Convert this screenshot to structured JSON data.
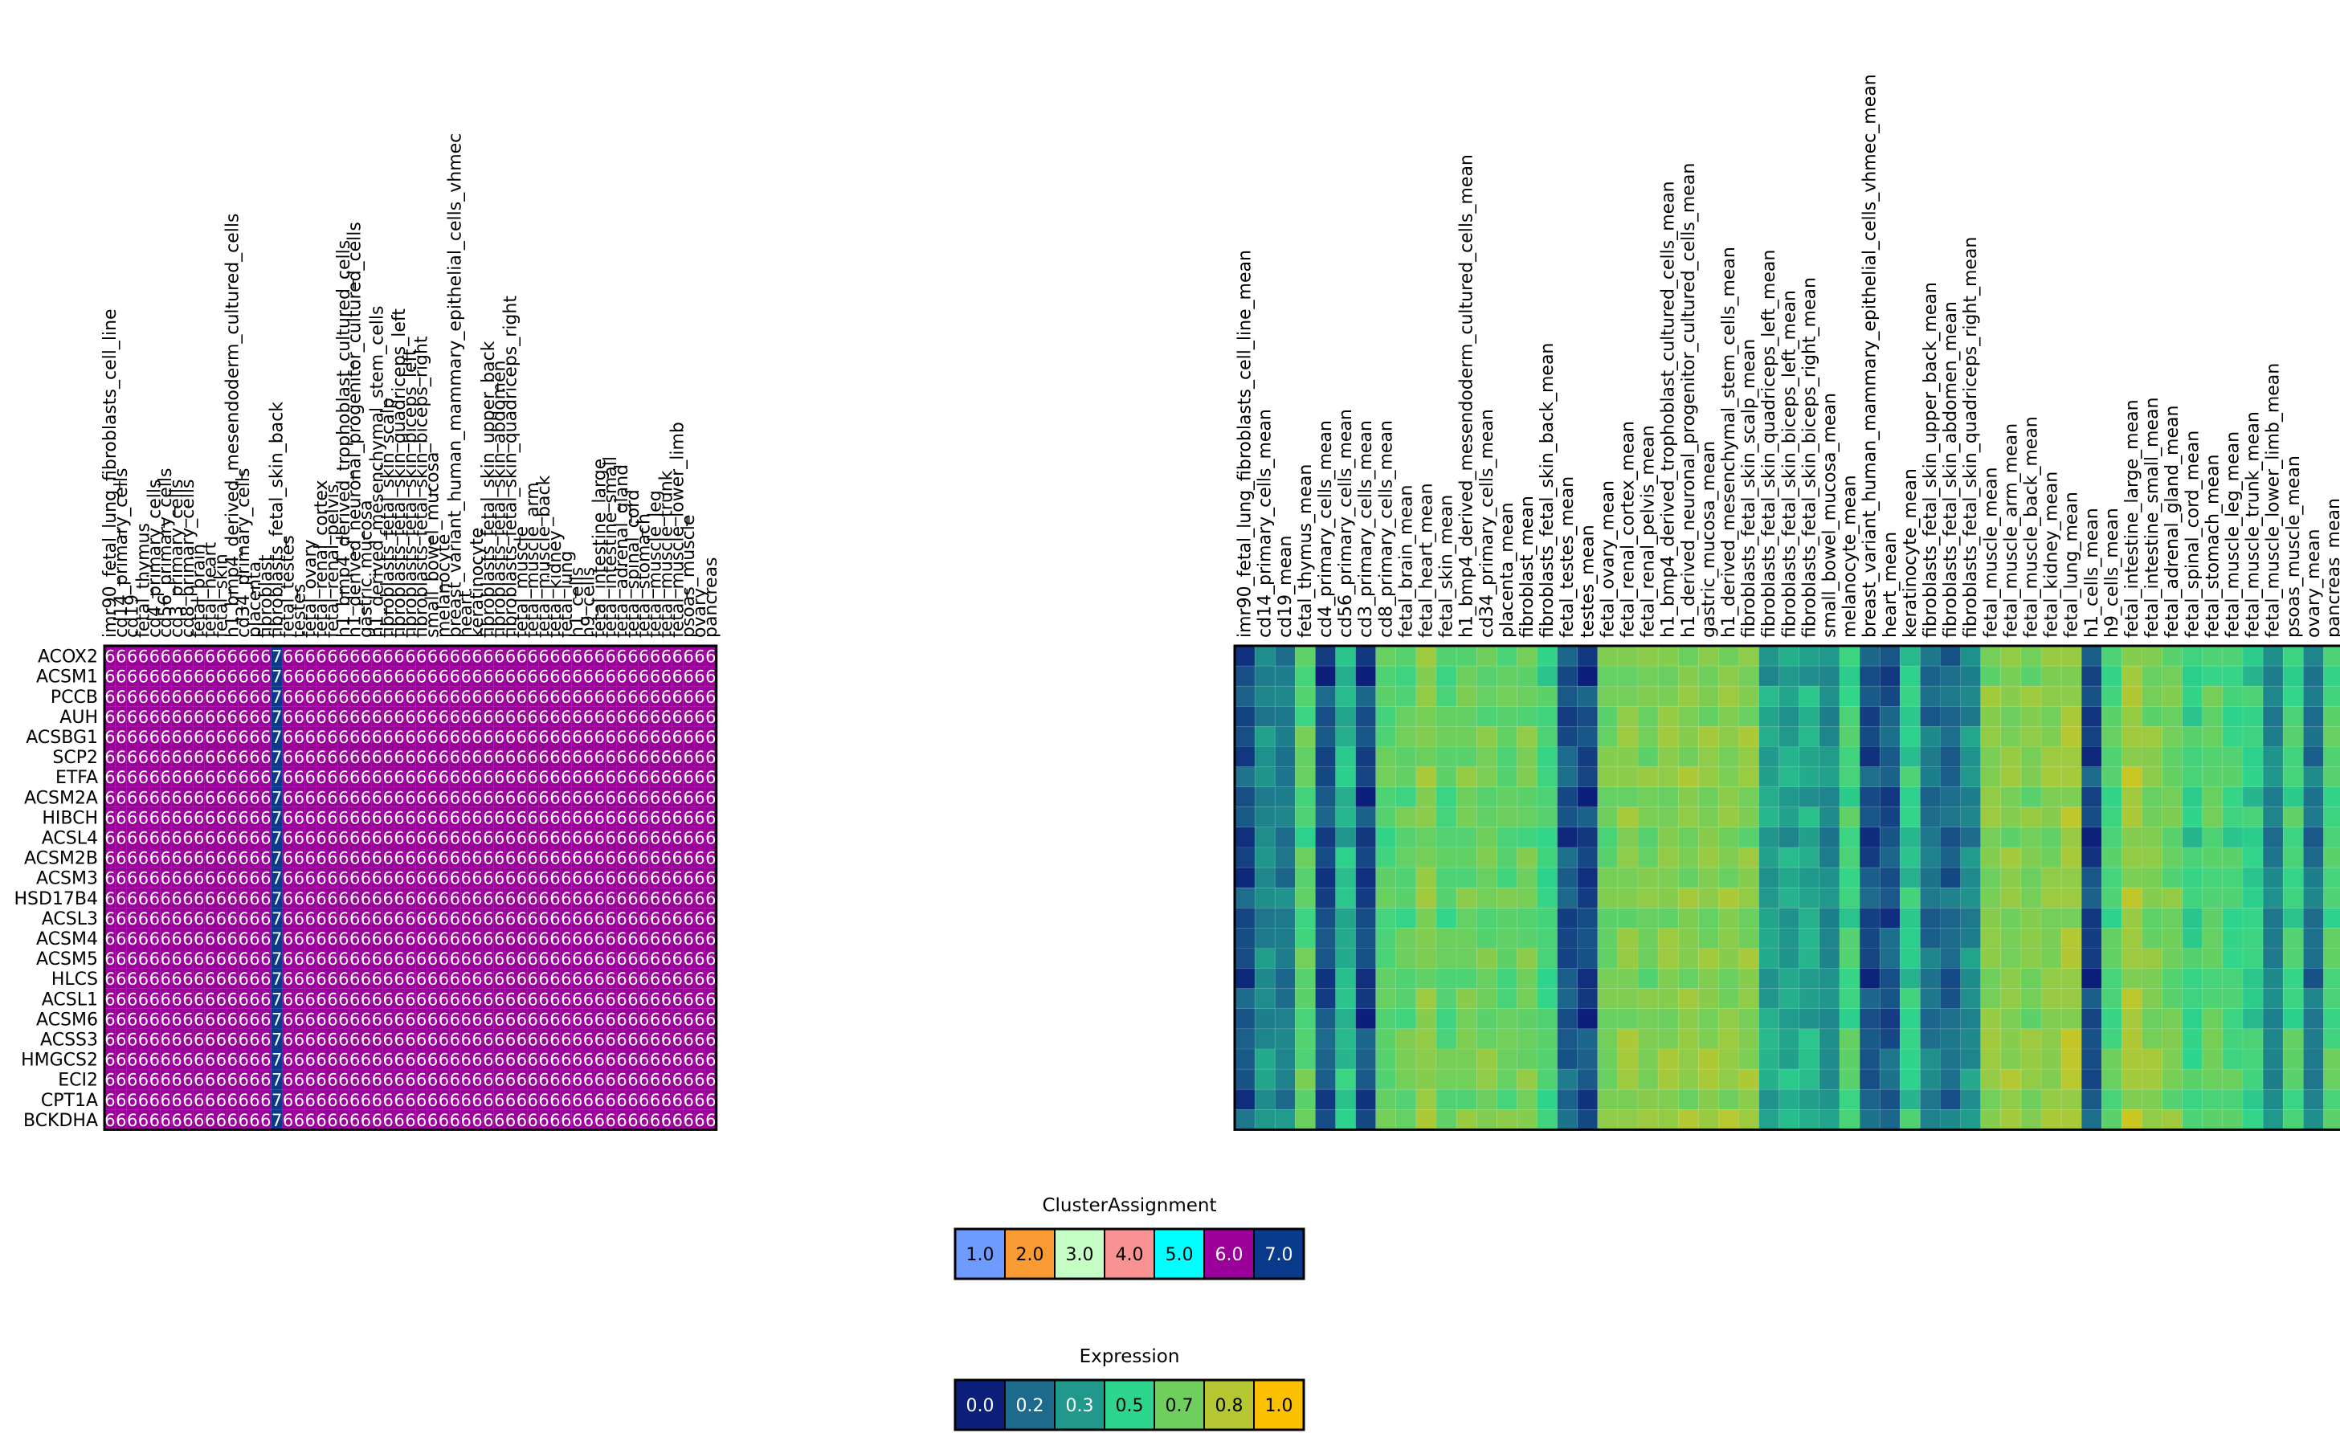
{
  "chart_data": [
    {
      "type": "heatmap",
      "title": "",
      "rows": [
        "ACOX2",
        "ACSM1",
        "PCCB",
        "AUH",
        "ACSBG1",
        "SCP2",
        "ETFA",
        "ACSM2A",
        "HIBCH",
        "ACSL4",
        "ACSM2B",
        "ACSM3",
        "HSD17B4",
        "ACSL3",
        "ACSM4",
        "ACSM5",
        "HLCS",
        "ACSL1",
        "ACSM6",
        "ACSS3",
        "HMGCS2",
        "ECI2",
        "CPT1A",
        "BCKDHA"
      ],
      "columns": [
        "imr90_fetal_lung_fibroblasts_cell_line",
        "cd14_primary_cells",
        "cd19",
        "fetal_thymus",
        "cd4_primary_cells",
        "cd56_primary_cells",
        "cd3_primary_cells",
        "cd8_primary_cells",
        "fetal_brain",
        "fetal_heart",
        "fetal_skin",
        "h1_bmp4_derived_mesendoderm_cultured_cells",
        "cd34_primary_cells",
        "placenta",
        "fibroblast",
        "fibroblasts_fetal_skin_back",
        "fetal_testes",
        "testes",
        "fetal_ovary",
        "fetal_renal_cortex",
        "fetal_renal_pelvis",
        "h1_bmp4_derived_trophoblast_cultured_cells",
        "h1_derived_neuronal_progenitor_cultured_cells",
        "gastric_mucosa",
        "h1_derived_mesenchymal_stem_cells",
        "fibroblasts_fetal_skin_scalp",
        "fibroblasts_fetal_skin_quadriceps_left",
        "fibroblasts_fetal_skin_biceps_left",
        "fibroblasts_fetal_skin_biceps_right",
        "small_bowel_mucosa",
        "melanocyte",
        "breast_variant_human_mammary_epithelial_cells_vhmec",
        "heart",
        "keratinocyte",
        "fibroblasts_fetal_skin_upper_back",
        "fibroblasts_fetal_skin_abdomen",
        "fibroblasts_fetal_skin_quadriceps_right",
        "fetal_muscle",
        "fetal_muscle_arm",
        "fetal_muscle_back",
        "fetal_kidney",
        "fetal_lung",
        "h1_cells",
        "h9_cells",
        "fetal_intestine_large",
        "fetal_intestine_small",
        "fetal_adrenal_gland",
        "fetal_spinal_cord",
        "fetal_stomach",
        "fetal_muscle_leg",
        "fetal_muscle_trunk",
        "fetal_muscle_lower_limb",
        "psoas_muscle",
        "ovary",
        "pancreas"
      ],
      "cell_text": "6",
      "special_column": "fibroblasts_fetal_skin_back",
      "special_text": "7",
      "cell_color": "#9b009b",
      "special_color": "#0a3a8c"
    },
    {
      "type": "heatmap",
      "title": "",
      "columns": [
        "imr90_fetal_lung_fibroblasts_cell_line_mean",
        "cd14_primary_cells_mean",
        "cd19_mean",
        "fetal_thymus_mean",
        "cd4_primary_cells_mean",
        "cd56_primary_cells_mean",
        "cd3_primary_cells_mean",
        "cd8_primary_cells_mean",
        "fetal_brain_mean",
        "fetal_heart_mean",
        "fetal_skin_mean",
        "h1_bmp4_derived_mesendoderm_cultured_cells_mean",
        "cd34_primary_cells_mean",
        "placenta_mean",
        "fibroblast_mean",
        "fibroblasts_fetal_skin_back_mean",
        "fetal_testes_mean",
        "testes_mean",
        "fetal_ovary_mean",
        "fetal_renal_cortex_mean",
        "fetal_renal_pelvis_mean",
        "h1_bmp4_derived_trophoblast_cultured_cells_mean",
        "h1_derived_neuronal_progenitor_cultured_cells_mean",
        "gastric_mucosa_mean",
        "h1_derived_mesenchymal_stem_cells_mean",
        "fibroblasts_fetal_skin_scalp_mean",
        "fibroblasts_fetal_skin_quadriceps_left_mean",
        "fibroblasts_fetal_skin_biceps_left_mean",
        "fibroblasts_fetal_skin_biceps_right_mean",
        "small_bowel_mucosa_mean",
        "melanocyte_mean",
        "breast_variant_human_mammary_epithelial_cells_vhmec_mean",
        "heart_mean",
        "keratinocyte_mean",
        "fibroblasts_fetal_skin_upper_back_mean",
        "fibroblasts_fetal_skin_abdomen_mean",
        "fibroblasts_fetal_skin_quadriceps_right_mean",
        "fetal_muscle_mean",
        "fetal_muscle_arm_mean",
        "fetal_muscle_back_mean",
        "fetal_kidney_mean",
        "fetal_lung_mean",
        "h1_cells_mean",
        "h9_cells_mean",
        "fetal_intestine_large_mean",
        "fetal_intestine_small_mean",
        "fetal_adrenal_gland_mean",
        "fetal_spinal_cord_mean",
        "fetal_stomach_mean",
        "fetal_muscle_leg_mean",
        "fetal_muscle_trunk_mean",
        "fetal_muscle_lower_limb_mean",
        "psoas_muscle_mean",
        "ovary_mean",
        "pancreas_mean"
      ],
      "column_levels": [
        0.1,
        0.28,
        0.22,
        0.6,
        0.1,
        0.42,
        0.08,
        0.6,
        0.62,
        0.72,
        0.6,
        0.66,
        0.66,
        0.62,
        0.66,
        0.55,
        0.12,
        0.08,
        0.66,
        0.72,
        0.68,
        0.72,
        0.72,
        0.72,
        0.72,
        0.72,
        0.36,
        0.36,
        0.38,
        0.28,
        0.55,
        0.1,
        0.12,
        0.48,
        0.2,
        0.16,
        0.28,
        0.72,
        0.72,
        0.7,
        0.72,
        0.78,
        0.08,
        0.58,
        0.78,
        0.7,
        0.66,
        0.52,
        0.62,
        0.55,
        0.5,
        0.25,
        0.55,
        0.2,
        0.58
      ],
      "row_shift": [
        0.0,
        -0.04,
        0.02,
        -0.02,
        0.03,
        0.0,
        0.04,
        -0.03,
        0.02,
        -0.05,
        0.01,
        -0.02,
        0.03,
        -0.04,
        0.0,
        0.02,
        -0.03,
        0.01,
        -0.02,
        0.03,
        0.04,
        0.05,
        -0.01,
        0.06
      ],
      "colormap": [
        "#0c1f7a",
        "#1d6b8c",
        "#20998c",
        "#2ed58c",
        "#6ecf5c",
        "#b5c832",
        "#fbc100"
      ]
    }
  ],
  "legends": {
    "cluster": {
      "title": "ClusterAssignment",
      "items": [
        {
          "label": "1.0",
          "color": "#6e9bff"
        },
        {
          "label": "2.0",
          "color": "#f99a32"
        },
        {
          "label": "3.0",
          "color": "#c6ffc6"
        },
        {
          "label": "4.0",
          "color": "#f99292"
        },
        {
          "label": "5.0",
          "color": "#00ffff"
        },
        {
          "label": "6.0",
          "color": "#9b009b"
        },
        {
          "label": "7.0",
          "color": "#0a3a8c"
        }
      ]
    },
    "expression": {
      "title": "Expression",
      "items": [
        {
          "label": "0.0",
          "color": "#0c1f7a"
        },
        {
          "label": "0.2",
          "color": "#1d6b8c"
        },
        {
          "label": "0.3",
          "color": "#20998c"
        },
        {
          "label": "0.5",
          "color": "#2ed58c"
        },
        {
          "label": "0.7",
          "color": "#6ecf5c"
        },
        {
          "label": "0.8",
          "color": "#b5c832"
        },
        {
          "label": "1.0",
          "color": "#fbc100"
        }
      ]
    }
  }
}
